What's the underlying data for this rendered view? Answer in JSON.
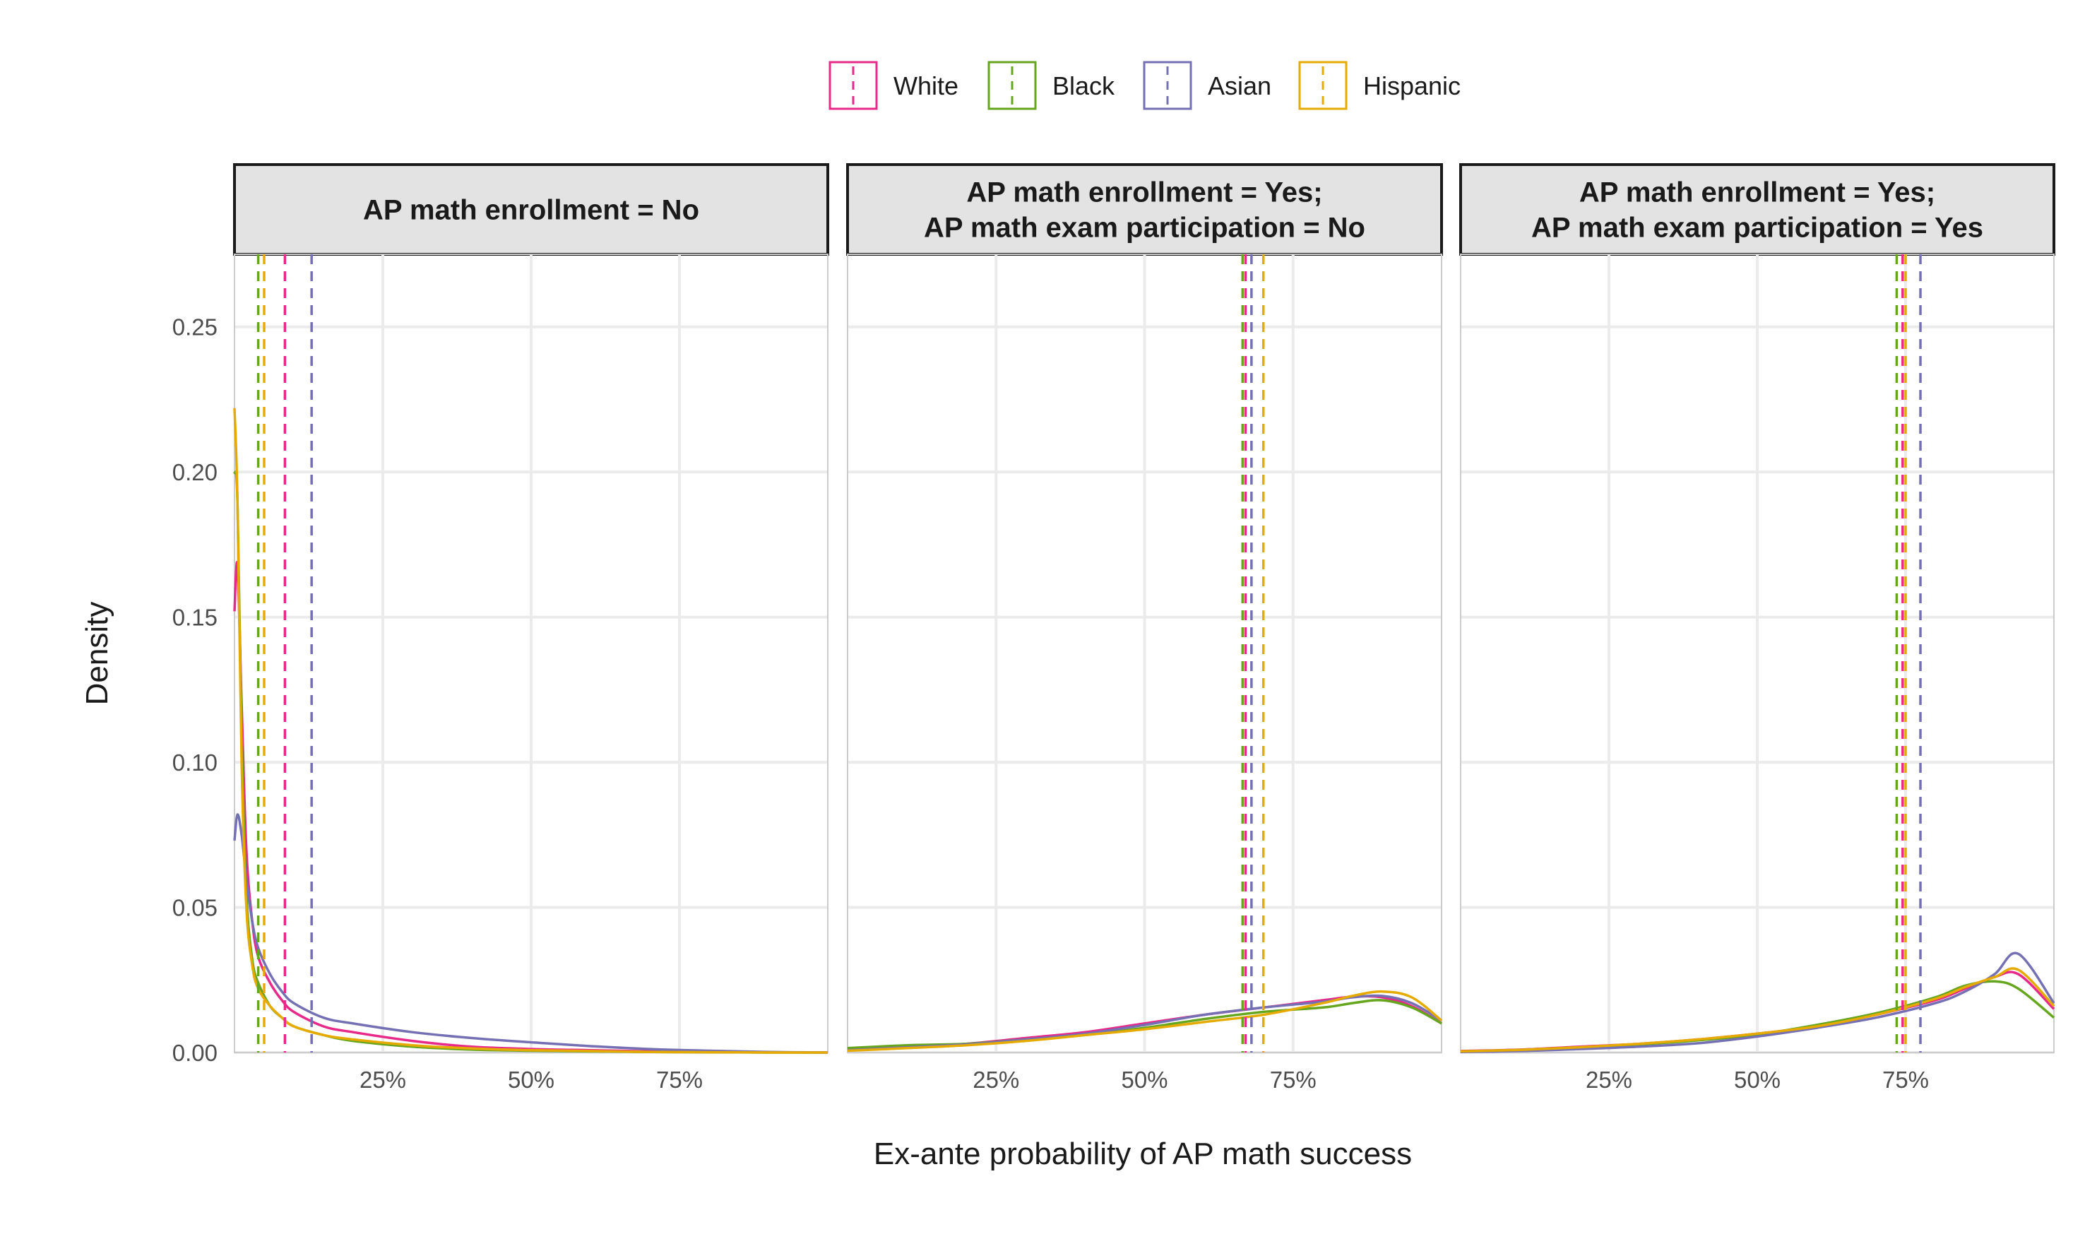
{
  "chart_data": {
    "type": "density",
    "xlabel": "Ex-ante probability of AP math success",
    "ylabel": "Density",
    "ylim": [
      0,
      0.275
    ],
    "xlim": [
      0,
      1
    ],
    "y_ticks": [
      0,
      0.05,
      0.1,
      0.15,
      0.2,
      0.25
    ],
    "y_tick_labels": [
      "0.00",
      "0.05",
      "0.10",
      "0.15",
      "0.20",
      "0.25"
    ],
    "x_ticks": [
      0.25,
      0.5,
      0.75
    ],
    "x_tick_labels": [
      "25%",
      "50%",
      "75%"
    ],
    "legend": {
      "position": "top",
      "entries": [
        {
          "name": "White",
          "color": "#e7298a"
        },
        {
          "name": "Black",
          "color": "#66a61e"
        },
        {
          "name": "Asian",
          "color": "#7570b3"
        },
        {
          "name": "Hispanic",
          "color": "#e6ab02"
        }
      ]
    },
    "panels": [
      {
        "title_lines": [
          "AP math enrollment = No"
        ],
        "means": {
          "White": 0.085,
          "Black": 0.04,
          "Asian": 0.13,
          "Hispanic": 0.05
        },
        "series": [
          {
            "name": "White",
            "x": [
              0.0,
              0.005,
              0.012,
              0.02,
              0.03,
              0.04,
              0.06,
              0.08,
              0.1,
              0.15,
              0.2,
              0.3,
              0.4,
              0.5,
              0.6,
              0.7,
              0.8,
              0.9,
              1.0
            ],
            "y": [
              0.152,
              0.168,
              0.12,
              0.07,
              0.045,
              0.033,
              0.024,
              0.018,
              0.014,
              0.009,
              0.007,
              0.004,
              0.002,
              0.0012,
              0.0008,
              0.0004,
              0.0002,
              0.0001,
              0.0
            ]
          },
          {
            "name": "Black",
            "x": [
              0.0,
              0.005,
              0.012,
              0.02,
              0.03,
              0.04,
              0.06,
              0.08,
              0.1,
              0.15,
              0.2,
              0.3,
              0.4,
              0.5,
              0.6,
              0.7,
              0.8,
              0.9,
              1.0
            ],
            "y": [
              0.2,
              0.19,
              0.11,
              0.055,
              0.032,
              0.024,
              0.016,
              0.012,
              0.009,
              0.006,
              0.004,
              0.002,
              0.001,
              0.0006,
              0.0004,
              0.0002,
              0.0001,
              0.0,
              0.0
            ]
          },
          {
            "name": "Asian",
            "x": [
              0.0,
              0.005,
              0.012,
              0.02,
              0.03,
              0.04,
              0.06,
              0.08,
              0.1,
              0.15,
              0.2,
              0.3,
              0.4,
              0.5,
              0.6,
              0.7,
              0.8,
              0.9,
              1.0
            ],
            "y": [
              0.073,
              0.082,
              0.075,
              0.06,
              0.045,
              0.036,
              0.027,
              0.021,
              0.017,
              0.012,
              0.01,
              0.007,
              0.005,
              0.0035,
              0.0022,
              0.0012,
              0.0006,
              0.0002,
              0.0
            ]
          },
          {
            "name": "Hispanic",
            "x": [
              0.0,
              0.005,
              0.012,
              0.02,
              0.03,
              0.04,
              0.06,
              0.08,
              0.1,
              0.15,
              0.2,
              0.3,
              0.4,
              0.5,
              0.6,
              0.7,
              0.8,
              0.9,
              1.0
            ],
            "y": [
              0.222,
              0.19,
              0.1,
              0.05,
              0.03,
              0.022,
              0.016,
              0.012,
              0.009,
              0.006,
              0.0045,
              0.0025,
              0.0014,
              0.0008,
              0.0005,
              0.0002,
              0.0001,
              0.0,
              0.0
            ]
          }
        ]
      },
      {
        "title_lines": [
          "AP math enrollment = Yes;",
          "AP math exam participation = No"
        ],
        "means": {
          "White": 0.67,
          "Black": 0.665,
          "Asian": 0.68,
          "Hispanic": 0.7
        },
        "series": [
          {
            "name": "White",
            "x": [
              0.0,
              0.1,
              0.2,
              0.3,
              0.4,
              0.5,
              0.6,
              0.7,
              0.8,
              0.85,
              0.9,
              0.95,
              1.0
            ],
            "y": [
              0.001,
              0.002,
              0.003,
              0.005,
              0.007,
              0.01,
              0.013,
              0.0155,
              0.018,
              0.0192,
              0.019,
              0.016,
              0.01
            ]
          },
          {
            "name": "Black",
            "x": [
              0.0,
              0.1,
              0.2,
              0.3,
              0.4,
              0.5,
              0.6,
              0.7,
              0.8,
              0.85,
              0.9,
              0.95,
              1.0
            ],
            "y": [
              0.0015,
              0.0025,
              0.003,
              0.0045,
              0.006,
              0.0085,
              0.0115,
              0.014,
              0.0155,
              0.017,
              0.018,
              0.0155,
              0.01
            ]
          },
          {
            "name": "Asian",
            "x": [
              0.0,
              0.1,
              0.2,
              0.3,
              0.4,
              0.5,
              0.6,
              0.7,
              0.8,
              0.85,
              0.9,
              0.95,
              1.0
            ],
            "y": [
              0.0008,
              0.0018,
              0.0028,
              0.0045,
              0.0065,
              0.0095,
              0.013,
              0.0155,
              0.0175,
              0.019,
              0.0195,
              0.017,
              0.011
            ]
          },
          {
            "name": "Hispanic",
            "x": [
              0.0,
              0.1,
              0.2,
              0.3,
              0.4,
              0.5,
              0.6,
              0.7,
              0.8,
              0.85,
              0.9,
              0.95,
              1.0
            ],
            "y": [
              0.0006,
              0.0015,
              0.0025,
              0.004,
              0.006,
              0.008,
              0.0105,
              0.013,
              0.017,
              0.0195,
              0.021,
              0.019,
              0.011
            ]
          }
        ]
      },
      {
        "title_lines": [
          "AP math enrollment = Yes;",
          "AP math exam participation = Yes"
        ],
        "means": {
          "White": 0.745,
          "Black": 0.735,
          "Asian": 0.775,
          "Hispanic": 0.75
        },
        "series": [
          {
            "name": "White",
            "x": [
              0.0,
              0.1,
              0.2,
              0.3,
              0.4,
              0.5,
              0.6,
              0.7,
              0.8,
              0.85,
              0.9,
              0.94,
              1.0
            ],
            "y": [
              0.0005,
              0.001,
              0.002,
              0.003,
              0.0045,
              0.0065,
              0.009,
              0.013,
              0.018,
              0.022,
              0.026,
              0.027,
              0.015
            ]
          },
          {
            "name": "Black",
            "x": [
              0.0,
              0.1,
              0.2,
              0.3,
              0.4,
              0.5,
              0.6,
              0.7,
              0.8,
              0.85,
              0.9,
              0.94,
              1.0
            ],
            "y": [
              0.0004,
              0.0009,
              0.0018,
              0.0028,
              0.0042,
              0.0062,
              0.0095,
              0.0135,
              0.019,
              0.023,
              0.0245,
              0.022,
              0.012
            ]
          },
          {
            "name": "Asian",
            "x": [
              0.0,
              0.1,
              0.2,
              0.3,
              0.4,
              0.5,
              0.6,
              0.7,
              0.8,
              0.85,
              0.9,
              0.94,
              1.0
            ],
            "y": [
              0.0002,
              0.0005,
              0.0012,
              0.002,
              0.0032,
              0.0055,
              0.0085,
              0.012,
              0.017,
              0.021,
              0.027,
              0.034,
              0.017
            ]
          },
          {
            "name": "Hispanic",
            "x": [
              0.0,
              0.1,
              0.2,
              0.3,
              0.4,
              0.5,
              0.6,
              0.7,
              0.8,
              0.85,
              0.9,
              0.94,
              1.0
            ],
            "y": [
              0.0004,
              0.0009,
              0.0018,
              0.003,
              0.0045,
              0.0065,
              0.009,
              0.013,
              0.0185,
              0.0225,
              0.026,
              0.0285,
              0.016
            ]
          }
        ]
      }
    ]
  }
}
